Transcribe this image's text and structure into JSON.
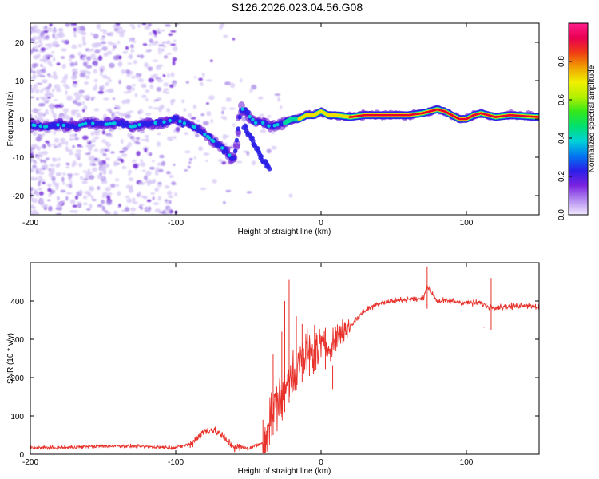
{
  "figure": {
    "title": "S126.2026.023.04.56.G08"
  },
  "colors": {
    "snr_line": "#e8312a",
    "track_core": "#e8002d",
    "scatter_light": "#d7c8f5",
    "scatter_mid": "#a989e8",
    "scatter_dark": "#6a19d6"
  },
  "chart_data": [
    {
      "type": "heatmap",
      "name": "spectrogram",
      "xlabel": "Height of straight line (km)",
      "ylabel": "Frequency (Hz)",
      "xlim": [
        -200,
        150
      ],
      "ylim": [
        -25,
        25
      ],
      "xticks": [
        -200,
        -100,
        0,
        100
      ],
      "xtick_labels": [
        "-200",
        "-100",
        "0",
        "100"
      ],
      "yticks": [
        -20,
        -10,
        0,
        10,
        20
      ],
      "ytick_labels": [
        "-20",
        "-10",
        "0",
        "10",
        "20"
      ],
      "track": {
        "x": [
          -200,
          -190,
          -180,
          -170,
          -160,
          -150,
          -140,
          -130,
          -120,
          -110,
          -100,
          -95,
          -90,
          -85,
          -80,
          -75,
          -70,
          -65,
          -60,
          -55,
          -50,
          -45,
          -40,
          -35,
          -30,
          -25,
          -20,
          -15,
          -10,
          -5,
          0,
          5,
          10,
          20,
          30,
          40,
          50,
          60,
          70,
          80,
          85,
          90,
          95,
          100,
          105,
          110,
          120,
          130,
          150
        ],
        "y": [
          -1.5,
          -2,
          -1.5,
          -2,
          -1,
          -1.5,
          -1,
          -2,
          -1,
          -1,
          0,
          -1,
          -1.5,
          -2.5,
          -4,
          -5.5,
          -7,
          -8.5,
          -11,
          3,
          1,
          -1,
          -1,
          -2,
          -1.5,
          -1,
          0,
          0,
          1,
          1,
          2,
          1,
          1,
          0.5,
          1,
          1,
          1,
          1,
          1.5,
          2.5,
          2,
          1,
          0,
          0,
          1,
          1.5,
          0.5,
          1,
          0.5
        ]
      },
      "branch": {
        "x": [
          -53,
          -48,
          -44,
          -40,
          -35
        ],
        "y": [
          -2,
          -5,
          -8,
          -11,
          -13
        ]
      },
      "colorbar": {
        "label": "Normalized spectral amplitude",
        "range": [
          0.0,
          1.0
        ],
        "ticks": [
          0.0,
          0.2,
          0.4,
          0.6,
          0.8
        ],
        "tick_labels": [
          "0.0",
          "0.2",
          "0.4",
          "0.6",
          "0.8"
        ],
        "stops": [
          "#f2eaff",
          "#b48cf0",
          "#7a22e0",
          "#2a1fe8",
          "#0078f0",
          "#00d2d8",
          "#00e070",
          "#33e81a",
          "#b4f000",
          "#f0f000",
          "#f0a000",
          "#f03c14",
          "#e80050",
          "#ff1e8c"
        ]
      }
    },
    {
      "type": "line",
      "name": "snr",
      "xlabel": "Height of straight line (km)",
      "ylabel": "SNR (10 * v/v)",
      "xlim": [
        -200,
        150
      ],
      "ylim": [
        0,
        500
      ],
      "xticks": [
        -200,
        -100,
        0,
        100
      ],
      "xtick_labels": [
        "-200",
        "-100",
        "0",
        "100"
      ],
      "yticks": [
        0,
        100,
        200,
        300,
        400
      ],
      "ytick_labels": [
        "0",
        "100",
        "200",
        "300",
        "400"
      ],
      "x": [
        -200,
        -180,
        -160,
        -140,
        -120,
        -100,
        -90,
        -85,
        -80,
        -75,
        -70,
        -65,
        -60,
        -50,
        -40,
        -35,
        -30,
        -25,
        -20,
        -15,
        -10,
        -5,
        0,
        5,
        10,
        15,
        20,
        25,
        30,
        40,
        50,
        60,
        70,
        73,
        80,
        90,
        100,
        110,
        115,
        120,
        130,
        140,
        150
      ],
      "y": [
        15,
        15,
        18,
        20,
        18,
        15,
        25,
        45,
        60,
        65,
        55,
        35,
        20,
        15,
        30,
        90,
        140,
        170,
        210,
        240,
        260,
        270,
        285,
        280,
        300,
        320,
        335,
        355,
        375,
        395,
        400,
        405,
        405,
        440,
        400,
        400,
        395,
        395,
        385,
        385,
        385,
        390,
        385
      ],
      "spikes": [
        {
          "x": -40,
          "y": 90
        },
        {
          "x": -33,
          "y": 260
        },
        {
          "x": -27,
          "y": 320
        },
        {
          "x": -25,
          "y": 400
        },
        {
          "x": -22,
          "y": 455
        },
        {
          "x": -17,
          "y": 360
        },
        {
          "x": -13,
          "y": 340
        },
        {
          "x": -8,
          "y": 310
        },
        {
          "x": 3,
          "y": 330
        },
        {
          "x": 8,
          "y": 170
        },
        {
          "x": 73,
          "y": 490
        },
        {
          "x": 112,
          "y": 330
        },
        {
          "x": 117,
          "y": 460
        }
      ]
    }
  ]
}
